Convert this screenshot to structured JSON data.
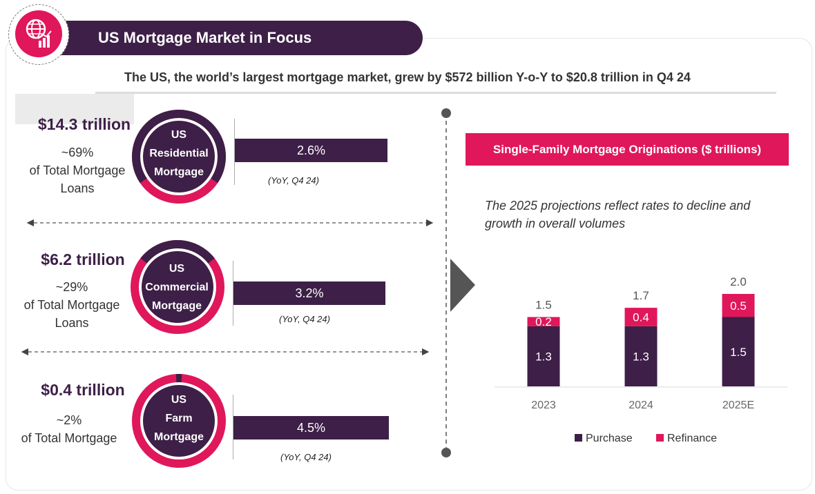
{
  "header": {
    "title": "US Mortgage Market in Focus",
    "subtitle": "The US, the world’s largest mortgage market, grew by $572 billion Y-o-Y to $20.8 trillion in Q4 24",
    "logo_icon": "globe-chart-icon"
  },
  "segments": [
    {
      "amount": "$14.3 trillion",
      "share_line1": "~69%",
      "share_line2": "of Total Mortgage",
      "share_line3": "Loans",
      "label_line1": "US",
      "label_line2": "Residential",
      "label_line3": "Mortgage",
      "share_value": 0.69,
      "growth": "2.6%",
      "growth_note": "(YoY, Q4 24)"
    },
    {
      "amount": "$6.2 trillion",
      "share_line1": "~29%",
      "share_line2": "of Total Mortgage",
      "share_line3": "Loans",
      "label_line1": "US",
      "label_line2": "Commercial",
      "label_line3": "Mortgage",
      "share_value": 0.29,
      "growth": "3.2%",
      "growth_note": "(YoY, Q4 24)"
    },
    {
      "amount": "$0.4 trillion",
      "share_line1": "~2%",
      "share_line2": "of Total Mortgage",
      "label_line1": "US",
      "label_line2": "Farm",
      "label_line3": "Mortgage",
      "share_value": 0.02,
      "growth": "4.5%",
      "growth_note": "(YoY, Q4 24)"
    }
  ],
  "right_panel": {
    "chart_title": "Single-Family Mortgage Originations ($ trillions)",
    "note": "The 2025 projections reflect rates to decline and growth in overall volumes"
  },
  "colors": {
    "purple": "#3d1f47",
    "pink": "#e0175a"
  },
  "chart_data": {
    "type": "bar",
    "stacked": true,
    "title": "Single-Family Mortgage Originations ($ trillions)",
    "categories": [
      "2023",
      "2024",
      "2025E"
    ],
    "series": [
      {
        "name": "Purchase",
        "values": [
          1.3,
          1.3,
          1.5
        ],
        "color": "#3d1f47"
      },
      {
        "name": "Refinance",
        "values": [
          0.2,
          0.4,
          0.5
        ],
        "color": "#e0175a"
      }
    ],
    "totals": [
      1.5,
      1.7,
      2.0
    ],
    "ylim": [
      0,
      2.0
    ],
    "legend": "bottom",
    "grid": false
  }
}
